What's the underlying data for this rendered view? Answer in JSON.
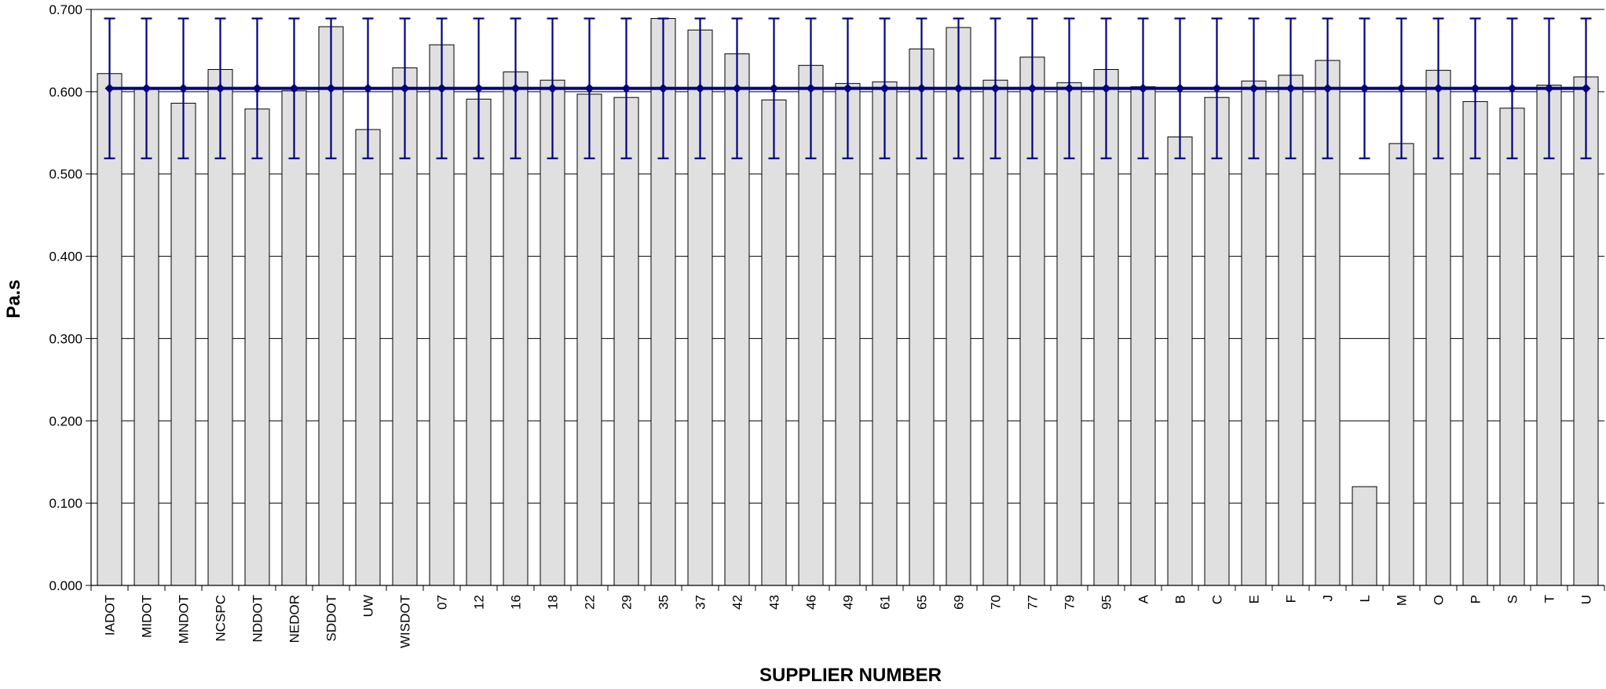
{
  "chart_data": {
    "type": "bar",
    "title": "",
    "xlabel": "SUPPLIER NUMBER",
    "ylabel": "Pa.s",
    "ylim": [
      0,
      0.7
    ],
    "yticks": [
      "0.000",
      "0.100",
      "0.200",
      "0.300",
      "0.400",
      "0.500",
      "0.600",
      "0.700"
    ],
    "grid": true,
    "legend": "none",
    "categories": [
      "IADOT",
      "MIDOT",
      "MNDOT",
      "NCSPC",
      "NDDOT",
      "NEDOR",
      "SDDOT",
      "UW",
      "WISDOT",
      "07",
      "12",
      "16",
      "18",
      "22",
      "29",
      "35",
      "37",
      "42",
      "43",
      "46",
      "49",
      "61",
      "65",
      "69",
      "70",
      "77",
      "79",
      "95",
      "A",
      "B",
      "C",
      "E",
      "F",
      "J",
      "L",
      "M",
      "O",
      "P",
      "S",
      "T",
      "U"
    ],
    "series": [
      {
        "type": "bar",
        "values": [
          0.622,
          0.604,
          0.586,
          0.627,
          0.579,
          0.601,
          0.679,
          0.554,
          0.629,
          0.657,
          0.591,
          0.624,
          0.614,
          0.597,
          0.593,
          0.689,
          0.675,
          0.646,
          0.59,
          0.632,
          0.61,
          0.612,
          0.652,
          0.678,
          0.614,
          0.642,
          0.611,
          0.627,
          0.606,
          0.545,
          0.593,
          0.613,
          0.62,
          0.638,
          0.12,
          0.537,
          0.626,
          0.588,
          0.58,
          0.608,
          0.618
        ]
      },
      {
        "type": "line",
        "constant": 0.604,
        "error_minus": 0.085,
        "error_plus": 0.085
      }
    ],
    "colors": {
      "bar_fill": "#e0e0e0",
      "bar_stroke": "#000000",
      "line": "#000080",
      "grid": "#000000"
    }
  }
}
